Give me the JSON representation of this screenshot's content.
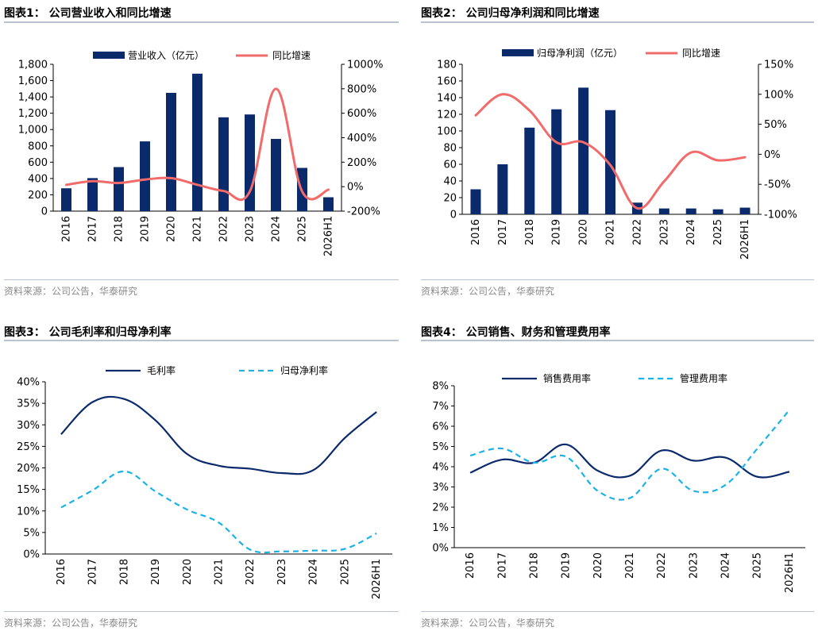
{
  "source_note": "资料来源：公司公告，华泰研究",
  "colors": {
    "bar": "#0b2a6b",
    "red_line": "#f26b6b",
    "navy_line": "#0b2a6b",
    "dash_line": "#1ab3e6"
  },
  "chart_data": [
    {
      "type": "bar+line",
      "title": "图表1：  公司营业收入和同比增速",
      "categories": [
        "2016",
        "2017",
        "2018",
        "2019",
        "2020",
        "2021",
        "2022",
        "2023",
        "2024",
        "2025",
        "2026H1"
      ],
      "series": [
        {
          "name": "营业收入（亿元）",
          "type": "bar",
          "axis": "left",
          "values": [
            280,
            405,
            540,
            855,
            1450,
            1685,
            1150,
            1185,
            885,
            530,
            170
          ]
        },
        {
          "name": "同比增速",
          "type": "line",
          "axis": "right",
          "values": [
            15,
            45,
            30,
            58,
            70,
            15,
            -35,
            -40,
            800,
            -40,
            -25
          ]
        }
      ],
      "left_axis": {
        "ylim": [
          0,
          1800
        ],
        "ticks": [
          "0",
          "200",
          "400",
          "600",
          "800",
          "1,000",
          "1,200",
          "1,400",
          "1,600",
          "1,800"
        ]
      },
      "right_axis": {
        "ylim": [
          -200,
          1000
        ],
        "ticks": [
          "-200%",
          "0%",
          "200%",
          "400%",
          "600%",
          "800%",
          "1000%"
        ]
      },
      "legend": "top"
    },
    {
      "type": "bar+line",
      "title": "图表2：  公司归母净利润和同比增速",
      "categories": [
        "2016",
        "2017",
        "2018",
        "2019",
        "2020",
        "2021",
        "2022",
        "2023",
        "2024",
        "2025",
        "2026H1"
      ],
      "series": [
        {
          "name": "归母净利润（亿元）",
          "type": "bar",
          "axis": "left",
          "values": [
            30,
            60,
            104,
            126,
            152,
            125,
            14,
            7,
            7,
            6,
            8
          ]
        },
        {
          "name": "同比增速",
          "type": "line",
          "axis": "right",
          "values": [
            65,
            100,
            73,
            20,
            20,
            -18,
            -90,
            -45,
            3,
            -10,
            -5
          ]
        }
      ],
      "left_axis": {
        "ylim": [
          0,
          180
        ],
        "ticks": [
          "0",
          "20",
          "40",
          "60",
          "80",
          "100",
          "120",
          "140",
          "160",
          "180"
        ]
      },
      "right_axis": {
        "ylim": [
          -100,
          150
        ],
        "ticks": [
          "-100%",
          "-50%",
          "0%",
          "50%",
          "100%",
          "150%"
        ]
      },
      "legend": "top"
    },
    {
      "type": "line",
      "title": "图表3：  公司毛利率和归母净利率",
      "categories": [
        "2016",
        "2017",
        "2018",
        "2019",
        "2020",
        "2021",
        "2022",
        "2023",
        "2024",
        "2025",
        "2026H1"
      ],
      "series": [
        {
          "name": "毛利率",
          "style": "solid",
          "values": [
            27.8,
            35.3,
            36.0,
            31.0,
            23.2,
            20.5,
            19.8,
            18.8,
            19.5,
            27.0,
            33.0
          ]
        },
        {
          "name": "归母净利率",
          "style": "dashed",
          "values": [
            10.8,
            14.8,
            19.2,
            14.5,
            10.3,
            7.3,
            1.0,
            0.6,
            0.8,
            1.2,
            4.8
          ]
        }
      ],
      "ylim": [
        0,
        40
      ],
      "ticks": [
        "0%",
        "5%",
        "10%",
        "15%",
        "20%",
        "25%",
        "30%",
        "35%",
        "40%"
      ],
      "legend": "top"
    },
    {
      "type": "line",
      "title": "图表4：  公司销售、财务和管理费用率",
      "categories": [
        "2016",
        "2017",
        "2018",
        "2019",
        "2020",
        "2021",
        "2022",
        "2023",
        "2024",
        "2025",
        "2026H1"
      ],
      "series": [
        {
          "name": "销售费用率",
          "style": "solid",
          "values": [
            3.7,
            4.35,
            4.2,
            5.1,
            3.8,
            3.55,
            4.8,
            4.3,
            4.45,
            3.5,
            3.75
          ]
        },
        {
          "name": "管理费用率",
          "style": "dashed",
          "values": [
            4.55,
            4.9,
            4.2,
            4.5,
            2.8,
            2.45,
            3.9,
            2.8,
            3.1,
            4.9,
            6.8
          ]
        }
      ],
      "ylim": [
        0,
        8
      ],
      "ticks": [
        "0%",
        "1%",
        "2%",
        "3%",
        "4%",
        "5%",
        "6%",
        "7%",
        "8%"
      ],
      "legend": "top"
    }
  ]
}
